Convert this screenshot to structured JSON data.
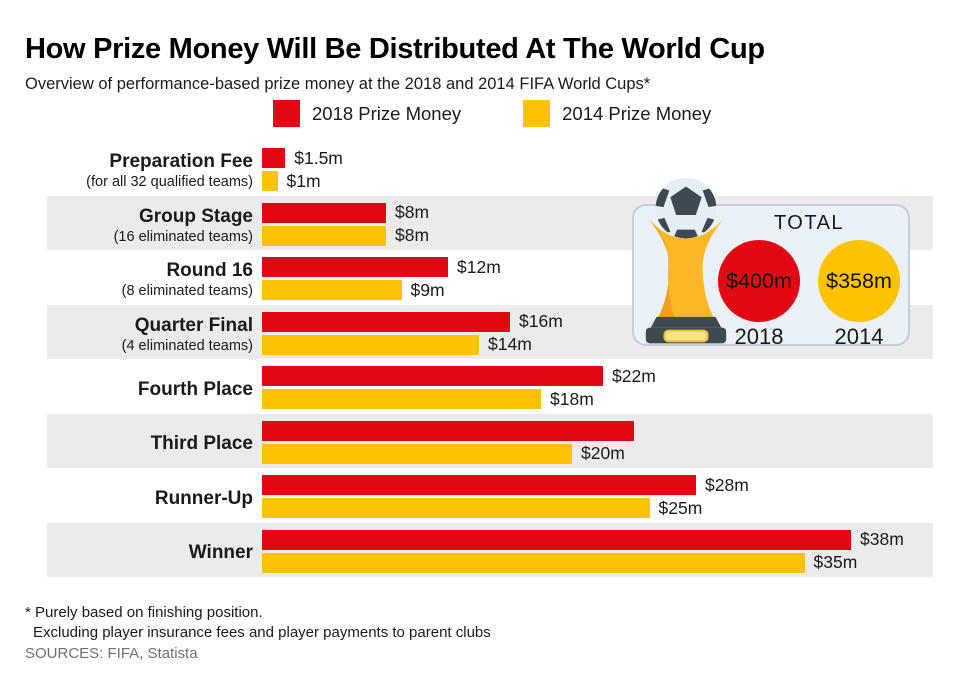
{
  "title": "How Prize Money Will Be Distributed At The World Cup",
  "subtitle": "Overview of performance-based prize money at the 2018 and 2014 FIFA World Cups*",
  "legend": [
    {
      "label": "2018 Prize Money",
      "color": "#e30613"
    },
    {
      "label": "2014 Prize Money",
      "color": "#fdc300"
    }
  ],
  "chart_data": {
    "type": "bar",
    "orientation": "horizontal",
    "unit": "million USD",
    "xlim": [
      0,
      40
    ],
    "row_stripe_color": "#ebebeb",
    "categories": [
      "Preparation Fee",
      "Group Stage",
      "Round 16",
      "Quarter Final",
      "Fourth Place",
      "Third Place",
      "Runner-Up",
      "Winner"
    ],
    "subcategories": [
      "(for all 32 qualified teams)",
      "(16 eliminated teams)",
      "(8 eliminated teams)",
      "(4 eliminated teams)",
      "",
      "",
      "",
      ""
    ],
    "series": [
      {
        "name": "2018 Prize Money",
        "color": "#e30613",
        "values": [
          1.5,
          8,
          12,
          16,
          22,
          24,
          28,
          38
        ],
        "labels": [
          "$1.5m",
          "$8m",
          "$12m",
          "$16m",
          "$22m",
          "",
          "$28m",
          "$38m"
        ]
      },
      {
        "name": "2014 Prize Money",
        "color": "#fdc300",
        "values": [
          1,
          8,
          9,
          14,
          18,
          20,
          25,
          35
        ],
        "labels": [
          "$1m",
          "$8m",
          "$9m",
          "$14m",
          "$18m",
          "$20m",
          "$25m",
          "$35m"
        ]
      }
    ]
  },
  "total_panel": {
    "heading": "TOTAL",
    "items": [
      {
        "value": "$400m",
        "year": "2018",
        "color": "#e30613"
      },
      {
        "value": "$358m",
        "year": "2014",
        "color": "#fdc300"
      }
    ]
  },
  "footnote": {
    "line1": "* Purely based on finishing position.",
    "line2": "Excluding player insurance fees and player payments to parent clubs"
  },
  "sources": "SOURCES: FIFA, Statista"
}
